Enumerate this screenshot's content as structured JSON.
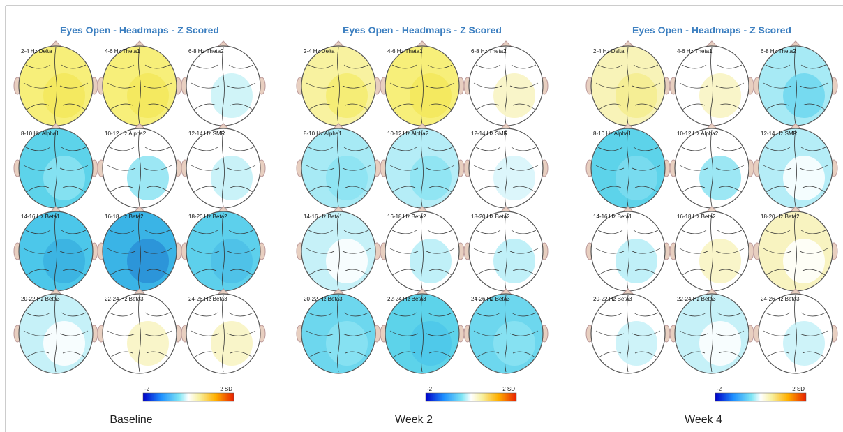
{
  "panels": [
    {
      "title": "Eyes Open - Headmaps - Z Scored",
      "caption": "Baseline",
      "scale_min": "-2",
      "scale_max": "2 SD",
      "maps": [
        {
          "label": "2-4 Hz Delta",
          "colors": [
            "#f7ef7a",
            "#f3e85c"
          ]
        },
        {
          "label": "4-6 Hz Theta1",
          "colors": [
            "#f7ef7a",
            "#f3e85c"
          ]
        },
        {
          "label": "6-8 Hz Theta2",
          "colors": [
            "#ffffff",
            "#c8f2f7"
          ]
        },
        {
          "label": "8-10 Hz Alpha1",
          "colors": [
            "#5dd3ea",
            "#8be3f2"
          ]
        },
        {
          "label": "10-12 Hz Alpha2",
          "colors": [
            "#ffffff",
            "#8be3f2"
          ]
        },
        {
          "label": "12-14 Hz SMR",
          "colors": [
            "#ffffff",
            "#bff0f7"
          ]
        },
        {
          "label": "14-16 Hz Beta1",
          "colors": [
            "#4cc7ea",
            "#3ab0e0"
          ]
        },
        {
          "label": "16-18 Hz Beta2",
          "colors": [
            "#3ab4e6",
            "#2a8fd6"
          ]
        },
        {
          "label": "18-20 Hz Beta2",
          "colors": [
            "#5dd0ec",
            "#4cc0e8"
          ]
        },
        {
          "label": "20-22 Hz Beta3",
          "colors": [
            "#c6f1f8",
            "#ffffff"
          ]
        },
        {
          "label": "22-24 Hz Beta3",
          "colors": [
            "#ffffff",
            "#f8f3c0"
          ]
        },
        {
          "label": "24-26 Hz Beta3",
          "colors": [
            "#ffffff",
            "#f8f3c0"
          ]
        }
      ]
    },
    {
      "title": "Eyes Open - Headmaps - Z Scored",
      "caption": "Week 2",
      "scale_min": "-2",
      "scale_max": "2 SD",
      "maps": [
        {
          "label": "2-4 Hz Delta",
          "colors": [
            "#f8f2a0",
            "#f5ec6e"
          ]
        },
        {
          "label": "4-6 Hz Theta1",
          "colors": [
            "#f7ef7a",
            "#f3e85c"
          ]
        },
        {
          "label": "6-8 Hz Theta2",
          "colors": [
            "#ffffff",
            "#f8f3c0"
          ]
        },
        {
          "label": "8-10 Hz Alpha1",
          "colors": [
            "#a7eaf5",
            "#8be3f2"
          ]
        },
        {
          "label": "10-12 Hz Alpha2",
          "colors": [
            "#b5edf7",
            "#8be3f2"
          ]
        },
        {
          "label": "12-14 Hz SMR",
          "colors": [
            "#ffffff",
            "#d6f5fa"
          ]
        },
        {
          "label": "14-16 Hz Beta1",
          "colors": [
            "#c6f1f8",
            "#ffffff"
          ]
        },
        {
          "label": "16-18 Hz Beta2",
          "colors": [
            "#ffffff",
            "#b5edf7"
          ]
        },
        {
          "label": "18-20 Hz Beta2",
          "colors": [
            "#ffffff",
            "#b5edf7"
          ]
        },
        {
          "label": "20-22 Hz Beta3",
          "colors": [
            "#6dd7ee",
            "#8be3f2"
          ]
        },
        {
          "label": "22-24 Hz Beta3",
          "colors": [
            "#5dd3ea",
            "#4cc7ea"
          ]
        },
        {
          "label": "24-26 Hz Beta3",
          "colors": [
            "#6dd7ee",
            "#8be3f2"
          ]
        }
      ]
    },
    {
      "title": "Eyes Open - Headmaps - Z Scored",
      "caption": "Week 4",
      "scale_min": "-2",
      "scale_max": "2 SD",
      "maps": [
        {
          "label": "2-4 Hz Delta",
          "colors": [
            "#f8f3b8",
            "#f5ec8e"
          ]
        },
        {
          "label": "4-6 Hz Theta1",
          "colors": [
            "#ffffff",
            "#f8f3c0"
          ]
        },
        {
          "label": "6-8 Hz Theta2",
          "colors": [
            "#a7eaf5",
            "#6dd7ee"
          ]
        },
        {
          "label": "8-10 Hz Alpha1",
          "colors": [
            "#5dd3ea",
            "#7ddcf0"
          ]
        },
        {
          "label": "10-12 Hz Alpha2",
          "colors": [
            "#ffffff",
            "#8be3f2"
          ]
        },
        {
          "label": "12-14 Hz SMR",
          "colors": [
            "#b5edf7",
            "#ffffff"
          ]
        },
        {
          "label": "14-16 Hz Beta1",
          "colors": [
            "#ffffff",
            "#b5edf7"
          ]
        },
        {
          "label": "16-18 Hz Beta2",
          "colors": [
            "#ffffff",
            "#f8f3c0"
          ]
        },
        {
          "label": "18-20 Hz Beta2",
          "colors": [
            "#f8f3c0",
            "#ffffff"
          ]
        },
        {
          "label": "20-22 Hz Beta3",
          "colors": [
            "#ffffff",
            "#c6f1f8"
          ]
        },
        {
          "label": "22-24 Hz Beta3",
          "colors": [
            "#c6f1f8",
            "#ffffff"
          ]
        },
        {
          "label": "24-26 Hz Beta3",
          "colors": [
            "#ffffff",
            "#c6f1f8"
          ]
        }
      ]
    }
  ]
}
